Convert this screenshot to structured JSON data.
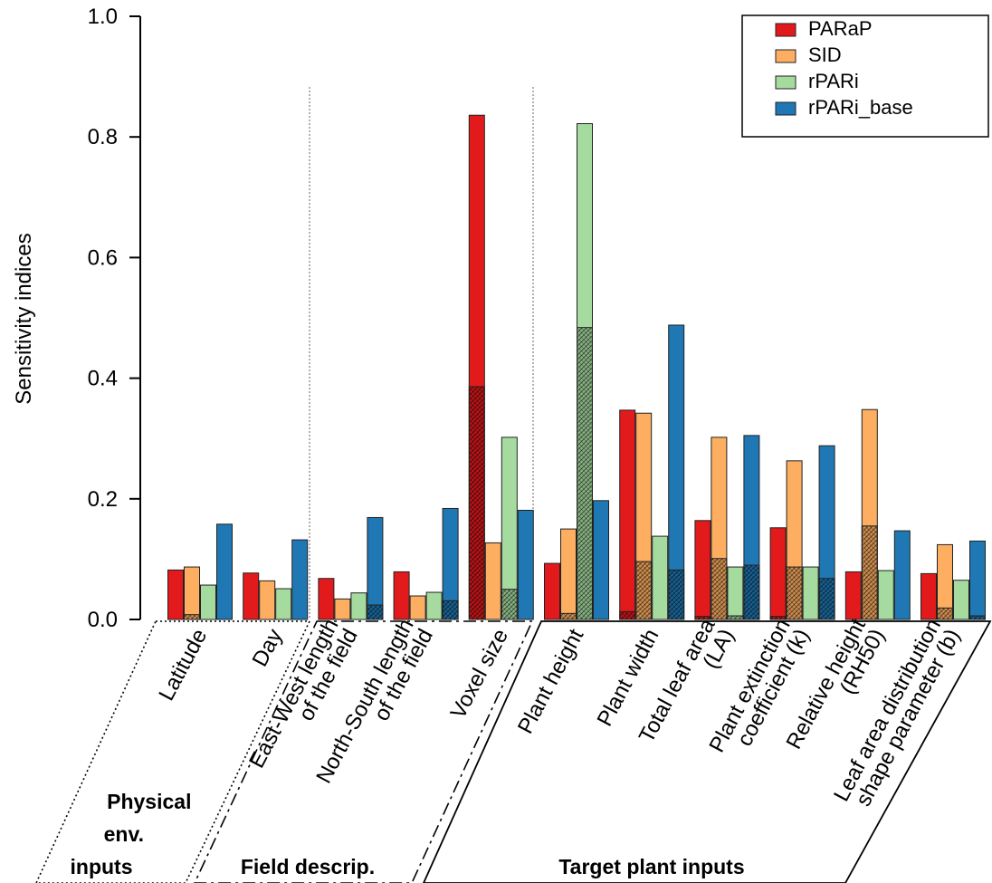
{
  "chart_data": {
    "type": "bar",
    "ylabel": "Sensitivity indices",
    "ylim": [
      0,
      1.0
    ],
    "yticks": [
      "0.0",
      "0.2",
      "0.4",
      "0.6",
      "0.8",
      "1.0"
    ],
    "grid": false,
    "legend_position": "top-right",
    "categories": [
      [
        "Latitude"
      ],
      [
        "Day"
      ],
      [
        "East-West length",
        "of the field"
      ],
      [
        "North-South length",
        "of the field"
      ],
      [
        "Voxel size"
      ],
      [
        "Plant height"
      ],
      [
        "Plant width"
      ],
      [
        "Total leaf area",
        "(LA)"
      ],
      [
        "Plant extinction",
        "coefficient (k)"
      ],
      [
        "Relative height",
        "(RH50)"
      ],
      [
        "Leaf area distribution",
        "shape parameter (b)"
      ]
    ],
    "series": [
      {
        "name": "PARaP",
        "color": "#e31a1c",
        "values": [
          0.082,
          0.077,
          0.068,
          0.079,
          0.836,
          0.093,
          0.347,
          0.164,
          0.152,
          0.079,
          0.076
        ],
        "hatched": [
          0.0,
          0.0,
          0.0,
          0.0,
          0.386,
          0.0,
          0.013,
          0.005,
          0.005,
          0.0,
          0.0
        ]
      },
      {
        "name": "SID",
        "color": "#fdae61",
        "values": [
          0.087,
          0.064,
          0.034,
          0.039,
          0.127,
          0.15,
          0.342,
          0.302,
          0.263,
          0.348,
          0.124
        ],
        "hatched": [
          0.008,
          0.0,
          0.0,
          0.0,
          0.0,
          0.01,
          0.096,
          0.101,
          0.087,
          0.155,
          0.019
        ]
      },
      {
        "name": "rPARi",
        "color": "#a6dba0",
        "values": [
          0.057,
          0.051,
          0.044,
          0.045,
          0.302,
          0.822,
          0.138,
          0.087,
          0.087,
          0.081,
          0.065
        ],
        "hatched": [
          0.0,
          0.0,
          0.0,
          0.0,
          0.05,
          0.484,
          0.0,
          0.006,
          0.0,
          0.0,
          0.0
        ]
      },
      {
        "name": "rPARi_base",
        "color": "#1f78b4",
        "values": [
          0.158,
          0.132,
          0.169,
          0.184,
          0.181,
          0.197,
          0.488,
          0.305,
          0.288,
          0.147,
          0.13
        ],
        "hatched": [
          0.0,
          0.0,
          0.024,
          0.031,
          0.003,
          0.0,
          0.082,
          0.09,
          0.068,
          0.0,
          0.006
        ]
      }
    ],
    "groups": [
      {
        "label": [
          "Physical",
          "env.",
          "inputs"
        ]
      },
      {
        "label": [
          "Field descrip."
        ]
      },
      {
        "label": [
          "Target plant inputs"
        ]
      }
    ]
  }
}
